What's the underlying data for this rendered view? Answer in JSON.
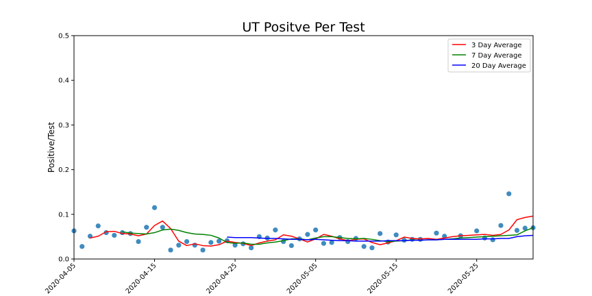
{
  "chart_data": {
    "type": "line",
    "title": "UT Positve Per Test",
    "xlabel": "",
    "ylabel": "Positive/Test",
    "x_start": "2020-04-05",
    "xlim": [
      "2020-04-05",
      "2020-06-01"
    ],
    "ylim": [
      0,
      0.5
    ],
    "x_ticks": [
      "2020-04-05",
      "2020-04-15",
      "2020-04-25",
      "2020-05-05",
      "2020-05-15",
      "2020-05-25"
    ],
    "y_ticks": [
      "0.0",
      "0.1",
      "0.2",
      "0.3",
      "0.4",
      "0.5"
    ],
    "grid": false,
    "legend_position": "top-right",
    "colors": {
      "scatter": "#1f77b4",
      "avg3": "#ff0000",
      "avg7": "#008000",
      "avg20": "#0000ff"
    },
    "scatter": {
      "dates": [
        "2020-04-05",
        "2020-04-06",
        "2020-04-07",
        "2020-04-08",
        "2020-04-09",
        "2020-04-10",
        "2020-04-11",
        "2020-04-12",
        "2020-04-13",
        "2020-04-14",
        "2020-04-15",
        "2020-04-16",
        "2020-04-17",
        "2020-04-18",
        "2020-04-19",
        "2020-04-20",
        "2020-04-21",
        "2020-04-22",
        "2020-04-23",
        "2020-04-24",
        "2020-04-25",
        "2020-04-26",
        "2020-04-27",
        "2020-04-28",
        "2020-04-29",
        "2020-04-30",
        "2020-05-01",
        "2020-05-02",
        "2020-05-03",
        "2020-05-04",
        "2020-05-05",
        "2020-05-06",
        "2020-05-07",
        "2020-05-08",
        "2020-05-09",
        "2020-05-10",
        "2020-05-11",
        "2020-05-12",
        "2020-05-13",
        "2020-05-14",
        "2020-05-15",
        "2020-05-16",
        "2020-05-17",
        "2020-05-18",
        "2020-05-20",
        "2020-05-21",
        "2020-05-23",
        "2020-05-25",
        "2020-05-26",
        "2020-05-27",
        "2020-05-28",
        "2020-05-29",
        "2020-05-30",
        "2020-05-31",
        "2020-06-01"
      ],
      "values": [
        0.063,
        0.028,
        0.051,
        0.074,
        0.059,
        0.053,
        0.059,
        0.057,
        0.039,
        0.071,
        0.115,
        0.071,
        0.02,
        0.031,
        0.039,
        0.031,
        0.02,
        0.037,
        0.04,
        0.041,
        0.031,
        0.034,
        0.025,
        0.05,
        0.047,
        0.065,
        0.039,
        0.03,
        0.045,
        0.055,
        0.065,
        0.035,
        0.037,
        0.048,
        0.039,
        0.046,
        0.028,
        0.025,
        0.057,
        0.038,
        0.054,
        0.042,
        0.044,
        0.044,
        0.058,
        0.051,
        0.052,
        0.063,
        0.047,
        0.043,
        0.075,
        0.146,
        0.064,
        0.069,
        0.07
      ]
    },
    "series": [
      {
        "name": "3 Day Average",
        "dates": [
          "2020-04-07",
          "2020-04-08",
          "2020-04-09",
          "2020-04-10",
          "2020-04-11",
          "2020-04-12",
          "2020-04-13",
          "2020-04-14",
          "2020-04-15",
          "2020-04-16",
          "2020-04-17",
          "2020-04-18",
          "2020-04-19",
          "2020-04-20",
          "2020-04-21",
          "2020-04-22",
          "2020-04-23",
          "2020-04-24",
          "2020-04-25",
          "2020-04-26",
          "2020-04-27",
          "2020-04-28",
          "2020-04-29",
          "2020-04-30",
          "2020-05-01",
          "2020-05-02",
          "2020-05-03",
          "2020-05-04",
          "2020-05-05",
          "2020-05-06",
          "2020-05-07",
          "2020-05-08",
          "2020-05-09",
          "2020-05-10",
          "2020-05-11",
          "2020-05-12",
          "2020-05-13",
          "2020-05-14",
          "2020-05-15",
          "2020-05-16",
          "2020-05-17",
          "2020-05-18",
          "2020-05-19",
          "2020-05-20",
          "2020-05-21",
          "2020-05-22",
          "2020-05-23",
          "2020-05-24",
          "2020-05-25",
          "2020-05-26",
          "2020-05-27",
          "2020-05-28",
          "2020-05-29",
          "2020-05-30",
          "2020-05-31",
          "2020-06-01"
        ],
        "values": [
          0.047,
          0.051,
          0.061,
          0.062,
          0.057,
          0.056,
          0.052,
          0.056,
          0.075,
          0.085,
          0.068,
          0.04,
          0.03,
          0.034,
          0.03,
          0.029,
          0.032,
          0.04,
          0.037,
          0.035,
          0.03,
          0.036,
          0.04,
          0.043,
          0.054,
          0.051,
          0.045,
          0.038,
          0.045,
          0.055,
          0.051,
          0.045,
          0.041,
          0.044,
          0.045,
          0.037,
          0.032,
          0.036,
          0.041,
          0.049,
          0.046,
          0.045,
          0.046,
          0.044,
          0.047,
          0.05,
          0.052,
          0.053,
          0.054,
          0.055,
          0.053,
          0.055,
          0.065,
          0.088,
          0.093,
          0.096
        ]
      },
      {
        "name": "7 Day Average",
        "dates": [
          "2020-04-11",
          "2020-04-12",
          "2020-04-13",
          "2020-04-14",
          "2020-04-15",
          "2020-04-16",
          "2020-04-17",
          "2020-04-18",
          "2020-04-19",
          "2020-04-20",
          "2020-04-21",
          "2020-04-22",
          "2020-04-23",
          "2020-04-24",
          "2020-04-25",
          "2020-04-26",
          "2020-04-27",
          "2020-04-28",
          "2020-04-29",
          "2020-04-30",
          "2020-05-01",
          "2020-05-02",
          "2020-05-03",
          "2020-05-04",
          "2020-05-05",
          "2020-05-06",
          "2020-05-07",
          "2020-05-08",
          "2020-05-09",
          "2020-05-10",
          "2020-05-11",
          "2020-05-12",
          "2020-05-13",
          "2020-05-14",
          "2020-05-15",
          "2020-05-16",
          "2020-05-17",
          "2020-05-18",
          "2020-05-19",
          "2020-05-20",
          "2020-05-21",
          "2020-05-22",
          "2020-05-23",
          "2020-05-24",
          "2020-05-25",
          "2020-05-26",
          "2020-05-27",
          "2020-05-28",
          "2020-05-29",
          "2020-05-30",
          "2020-05-31",
          "2020-06-01"
        ],
        "values": [
          0.061,
          0.058,
          0.057,
          0.056,
          0.059,
          0.065,
          0.067,
          0.064,
          0.059,
          0.056,
          0.055,
          0.053,
          0.047,
          0.037,
          0.035,
          0.036,
          0.033,
          0.033,
          0.036,
          0.038,
          0.041,
          0.045,
          0.045,
          0.043,
          0.047,
          0.05,
          0.05,
          0.048,
          0.046,
          0.045,
          0.046,
          0.044,
          0.041,
          0.039,
          0.04,
          0.041,
          0.043,
          0.042,
          0.043,
          0.043,
          0.044,
          0.045,
          0.047,
          0.048,
          0.049,
          0.05,
          0.051,
          0.052,
          0.053,
          0.054,
          0.063,
          0.07
        ]
      },
      {
        "name": "20 Day Average",
        "dates": [
          "2020-04-24",
          "2020-04-25",
          "2020-04-26",
          "2020-04-27",
          "2020-04-28",
          "2020-04-29",
          "2020-04-30",
          "2020-05-01",
          "2020-05-02",
          "2020-05-03",
          "2020-05-04",
          "2020-05-05",
          "2020-05-06",
          "2020-05-07",
          "2020-05-08",
          "2020-05-09",
          "2020-05-10",
          "2020-05-11",
          "2020-05-12",
          "2020-05-13",
          "2020-05-14",
          "2020-05-15",
          "2020-05-16",
          "2020-05-17",
          "2020-05-18",
          "2020-05-19",
          "2020-05-20",
          "2020-05-21",
          "2020-05-22",
          "2020-05-23",
          "2020-05-24",
          "2020-05-25",
          "2020-05-26",
          "2020-05-27",
          "2020-05-28",
          "2020-05-29",
          "2020-05-30",
          "2020-05-31",
          "2020-06-01"
        ],
        "values": [
          0.049,
          0.048,
          0.048,
          0.048,
          0.047,
          0.046,
          0.046,
          0.045,
          0.044,
          0.044,
          0.043,
          0.044,
          0.043,
          0.042,
          0.041,
          0.041,
          0.04,
          0.04,
          0.04,
          0.04,
          0.041,
          0.041,
          0.041,
          0.042,
          0.042,
          0.043,
          0.043,
          0.044,
          0.044,
          0.044,
          0.044,
          0.044,
          0.045,
          0.045,
          0.046,
          0.046,
          0.05,
          0.052,
          0.053
        ]
      }
    ]
  }
}
